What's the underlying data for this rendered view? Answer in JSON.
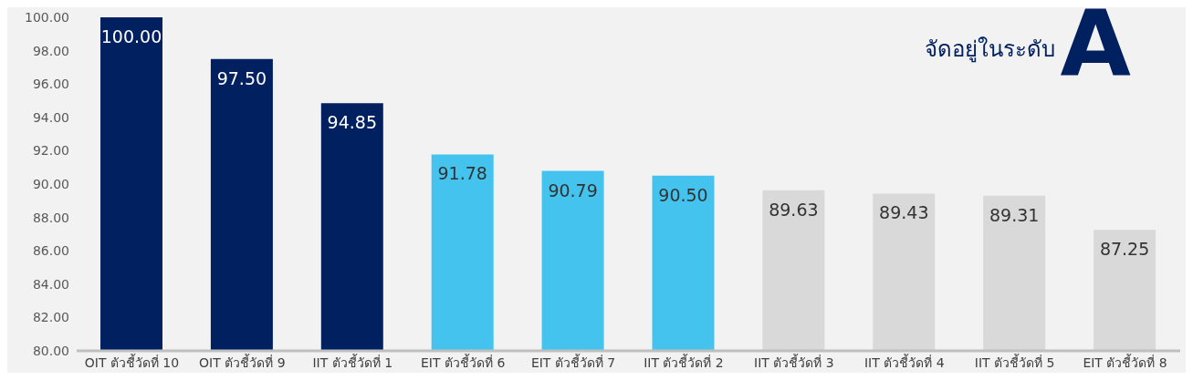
{
  "chart_data": {
    "type": "bar",
    "categories": [
      "OIT ตัวชี้วัดที่ 10",
      "OIT ตัวชี้วัดที่ 9",
      "IIT ตัวชี้วัดที่ 1",
      "EIT ตัวชี้วัดที่ 6",
      "EIT ตัวชี้วัดที่ 7",
      "IIT ตัวชี้วัดที่ 2",
      "IIT ตัวชี้วัดที่ 3",
      "IIT ตัวชี้วัดที่ 4",
      "IIT ตัวชี้วัดที่ 5",
      "EIT ตัวชี้วัดที่ 8"
    ],
    "values": [
      100,
      97.5,
      94.85,
      91.78,
      90.79,
      90.5,
      89.63,
      89.43,
      89.31,
      87.25
    ],
    "value_labels": [
      "100.00",
      "97.50",
      "94.85",
      "91.78",
      "90.79",
      "90.50",
      "89.63",
      "89.43",
      "89.31",
      "87.25"
    ],
    "colors": [
      "#002060",
      "#002060",
      "#002060",
      "#45c3ef",
      "#45c3ef",
      "#45c3ef",
      "#d9d9d9",
      "#d9d9d9",
      "#d9d9d9",
      "#d9d9d9"
    ],
    "ylim": [
      80,
      100
    ],
    "yticks": [
      {
        "value": 80,
        "label": "80.00"
      },
      {
        "value": 82,
        "label": "82.00"
      },
      {
        "value": 84,
        "label": "84.00"
      },
      {
        "value": 86,
        "label": "86.00"
      },
      {
        "value": 88,
        "label": "88.00"
      },
      {
        "value": 90,
        "label": "90.00"
      },
      {
        "value": 92,
        "label": "92.00"
      },
      {
        "value": 94,
        "label": "94.00"
      },
      {
        "value": 96,
        "label": "96.00"
      },
      {
        "value": 98,
        "label": "98.00"
      },
      {
        "value": 100,
        "label": "100.00"
      }
    ],
    "grid": false,
    "legend": false,
    "annotations": [
      "จัดอยู่ในระดับ",
      "A"
    ]
  }
}
